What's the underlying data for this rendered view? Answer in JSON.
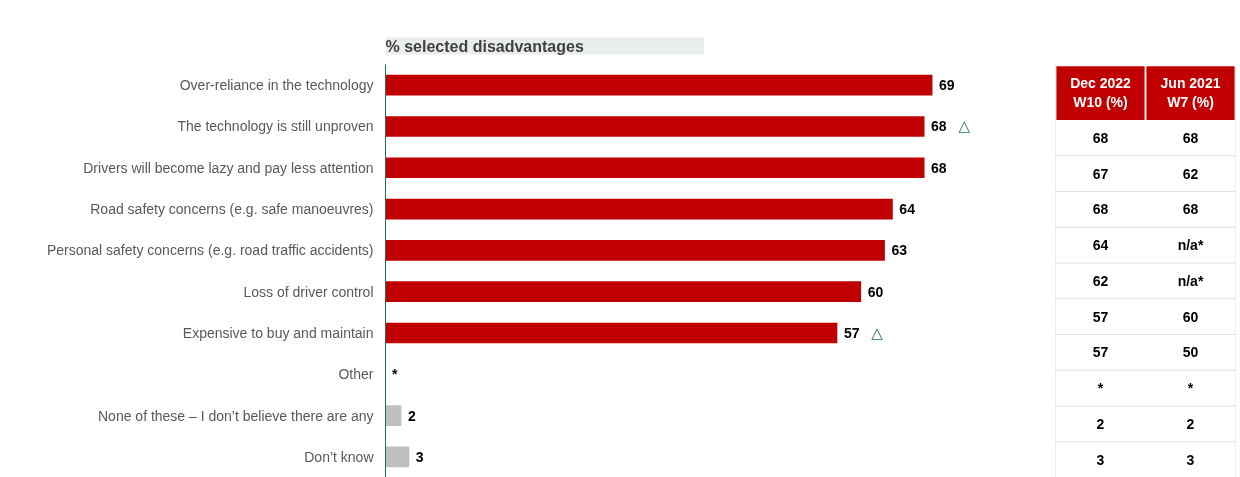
{
  "chart_data": [
    {
      "type": "bar",
      "orientation": "horizontal",
      "title": "% selected disadvantages",
      "categories": [
        "Over-reliance in the technology",
        "The technology is still unproven",
        "Drivers will become lazy and pay less attention",
        "Road safety concerns (e.g. safe manoeuvres)",
        "Personal safety concerns (e.g. road traffic accidents)",
        "Loss of driver control",
        "Expensive to buy and maintain",
        "Other",
        "None of these – I don’t believe there are any",
        "Don’t know"
      ],
      "values": [
        69,
        68,
        68,
        64,
        63,
        60,
        57,
        null,
        2,
        3
      ],
      "colors": [
        "#c00000",
        "#c00000",
        "#c00000",
        "#c00000",
        "#c00000",
        "#c00000",
        "#c00000",
        "#bfbfbf",
        "#bfbfbf",
        "#bfbfbf"
      ],
      "value_labels": [
        "69",
        "68",
        "68",
        "64",
        "63",
        "60",
        "57",
        "*",
        "2",
        "3"
      ],
      "annotations": [
        {
          "text": "△",
          "x": 68,
          "y": "The technology is still unproven"
        },
        {
          "text": "△",
          "x": 57,
          "y": "Expensive to buy and maintain"
        }
      ],
      "grid": false
    },
    {
      "type": "other",
      "categories": [
        "Dec 2022 W10 (%)",
        "Jun 2021 W7 (%)"
      ],
      "cell_labels": [
        [
          "68",
          "68"
        ],
        [
          "67",
          "62"
        ],
        [
          "68",
          "68"
        ],
        [
          "64",
          "n/a*"
        ],
        [
          "62",
          "n/a*"
        ],
        [
          "57",
          "60"
        ],
        [
          "57",
          "50"
        ],
        [
          "*",
          "*"
        ],
        [
          "2",
          "2"
        ],
        [
          "3",
          "3"
        ]
      ]
    }
  ]
}
